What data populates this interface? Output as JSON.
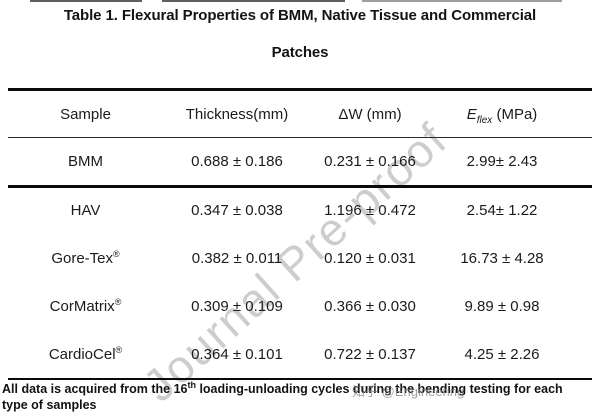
{
  "title": {
    "line1": "Table 1. Flexural Properties of BMM, Native Tissue and Commercial",
    "line2": "Patches"
  },
  "table": {
    "header": {
      "sample": "Sample",
      "thickness": "Thickness(mm)",
      "dw": "ΔW (mm)",
      "eflex_symbol": "E",
      "eflex_sub": "flex",
      "eflex_unit": " (MPa)"
    },
    "rows": [
      {
        "sample": "BMM",
        "reg": "",
        "thickness": "0.688 ± 0.186",
        "dw": "0.231 ± 0.166",
        "eflex": "2.99± 2.43"
      },
      {
        "sample": "HAV",
        "reg": "",
        "thickness": "0.347 ± 0.038",
        "dw": "1.196 ± 0.472",
        "eflex": "2.54± 1.22"
      },
      {
        "sample": "Gore-Tex",
        "reg": "®",
        "thickness": "0.382 ± 0.011",
        "dw": "0.120 ± 0.031",
        "eflex": "16.73 ± 4.28"
      },
      {
        "sample": "CorMatrix",
        "reg": "®",
        "thickness": "0.309 ± 0.109",
        "dw": "0.366 ± 0.030",
        "eflex": "9.89 ± 0.98"
      },
      {
        "sample": "CardioCel",
        "reg": "®",
        "thickness": "0.364 ± 0.101",
        "dw": "0.722 ± 0.137",
        "eflex": "4.25 ± 2.26"
      }
    ]
  },
  "footnote": {
    "part1": "All data is acquired from the 16",
    "sup": "th",
    "part2": " loading-unloading cycles during the bending testing for each",
    "line2": "type of samples"
  },
  "watermarks": {
    "diagonal": "Journal Pre-proof",
    "zhihu": "知乎 @Engineering"
  },
  "colors": {
    "rule": "#0a0a0a",
    "text": "#1b1b1b",
    "diagonal_watermark": "#b7bbc0",
    "zhihu_watermark": "#9b9ea3"
  }
}
